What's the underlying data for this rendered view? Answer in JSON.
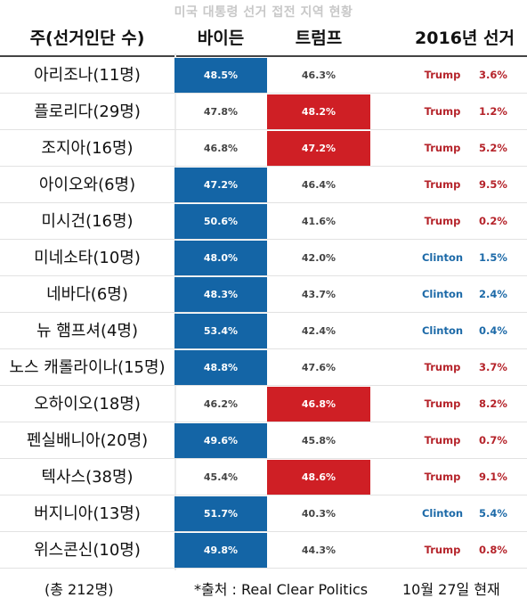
{
  "title": "미국 대통령 선거 접전 지역 현황",
  "headers": {
    "state": "주(선거인단 수)",
    "biden": "바이든",
    "trump": "트럼프",
    "prev": "2016년 선거"
  },
  "colors": {
    "biden_win": "#1465a6",
    "trump_win": "#cf1f25",
    "trump_text": "#b5232a",
    "clinton_text": "#1d6aa8"
  },
  "chart_data": {
    "type": "table",
    "columns": [
      "주(선거인단 수)",
      "바이든",
      "트럼프",
      "2016년 선거",
      ""
    ],
    "rows": [
      {
        "state": "아리조나(11명)",
        "biden": "48.5%",
        "trump": "46.3%",
        "winner2016": "Trump",
        "margin2016": "3.6%",
        "leader": "biden"
      },
      {
        "state": "플로리다(29명)",
        "biden": "47.8%",
        "trump": "48.2%",
        "winner2016": "Trump",
        "margin2016": "1.2%",
        "leader": "trump"
      },
      {
        "state": "조지아(16명)",
        "biden": "46.8%",
        "trump": "47.2%",
        "winner2016": "Trump",
        "margin2016": "5.2%",
        "leader": "trump"
      },
      {
        "state": "아이오와(6명)",
        "biden": "47.2%",
        "trump": "46.4%",
        "winner2016": "Trump",
        "margin2016": "9.5%",
        "leader": "biden"
      },
      {
        "state": "미시건(16명)",
        "biden": "50.6%",
        "trump": "41.6%",
        "winner2016": "Trump",
        "margin2016": "0.2%",
        "leader": "biden"
      },
      {
        "state": "미네소타(10명)",
        "biden": "48.0%",
        "trump": "42.0%",
        "winner2016": "Clinton",
        "margin2016": "1.5%",
        "leader": "biden"
      },
      {
        "state": "네바다(6명)",
        "biden": "48.3%",
        "trump": "43.7%",
        "winner2016": "Clinton",
        "margin2016": "2.4%",
        "leader": "biden"
      },
      {
        "state": "뉴 햄프셔(4명)",
        "biden": "53.4%",
        "trump": "42.4%",
        "winner2016": "Clinton",
        "margin2016": "0.4%",
        "leader": "biden"
      },
      {
        "state": "노스 캐롤라이나(15명)",
        "biden": "48.8%",
        "trump": "47.6%",
        "winner2016": "Trump",
        "margin2016": "3.7%",
        "leader": "biden"
      },
      {
        "state": "오하이오(18명)",
        "biden": "46.2%",
        "trump": "46.8%",
        "winner2016": "Trump",
        "margin2016": "8.2%",
        "leader": "trump"
      },
      {
        "state": "펜실배니아(20명)",
        "biden": "49.6%",
        "trump": "45.8%",
        "winner2016": "Trump",
        "margin2016": "0.7%",
        "leader": "biden"
      },
      {
        "state": "텍사스(38명)",
        "biden": "45.4%",
        "trump": "48.6%",
        "winner2016": "Trump",
        "margin2016": "9.1%",
        "leader": "trump"
      },
      {
        "state": "버지니아(13명)",
        "biden": "51.7%",
        "trump": "40.3%",
        "winner2016": "Clinton",
        "margin2016": "5.4%",
        "leader": "biden"
      },
      {
        "state": "위스콘신(10명)",
        "biden": "49.8%",
        "trump": "44.3%",
        "winner2016": "Trump",
        "margin2016": "0.8%",
        "leader": "biden"
      }
    ]
  },
  "footer": {
    "total": "(총 212명)",
    "source": "*출처 :  Real Clear Politics",
    "date": "10월 27일 현재"
  }
}
